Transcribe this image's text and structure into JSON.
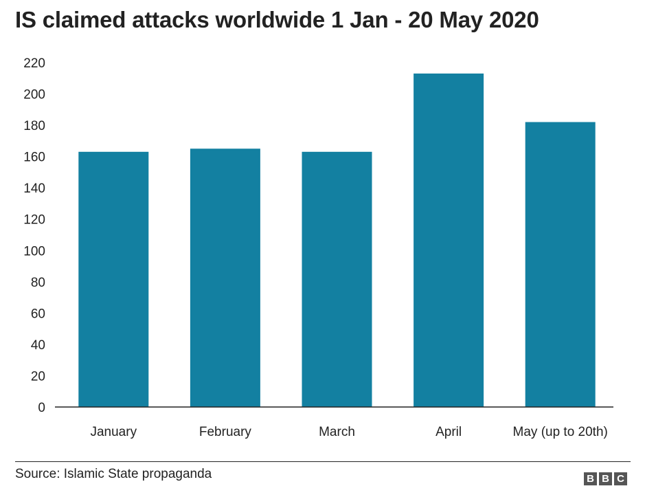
{
  "chart_data": {
    "type": "bar",
    "title": "IS claimed attacks worldwide 1 Jan - 20 May 2020",
    "categories": [
      "January",
      "February",
      "March",
      "April",
      "May (up to 20th)"
    ],
    "values": [
      163,
      165,
      163,
      213,
      182
    ],
    "ylim": [
      0,
      220
    ],
    "yticks": [
      0,
      20,
      40,
      60,
      80,
      100,
      120,
      140,
      160,
      180,
      200,
      220
    ],
    "bar_color": "#1380a1",
    "grid": false
  },
  "footer": {
    "source": "Source: Islamic State propaganda",
    "logo": [
      "B",
      "B",
      "C"
    ]
  }
}
